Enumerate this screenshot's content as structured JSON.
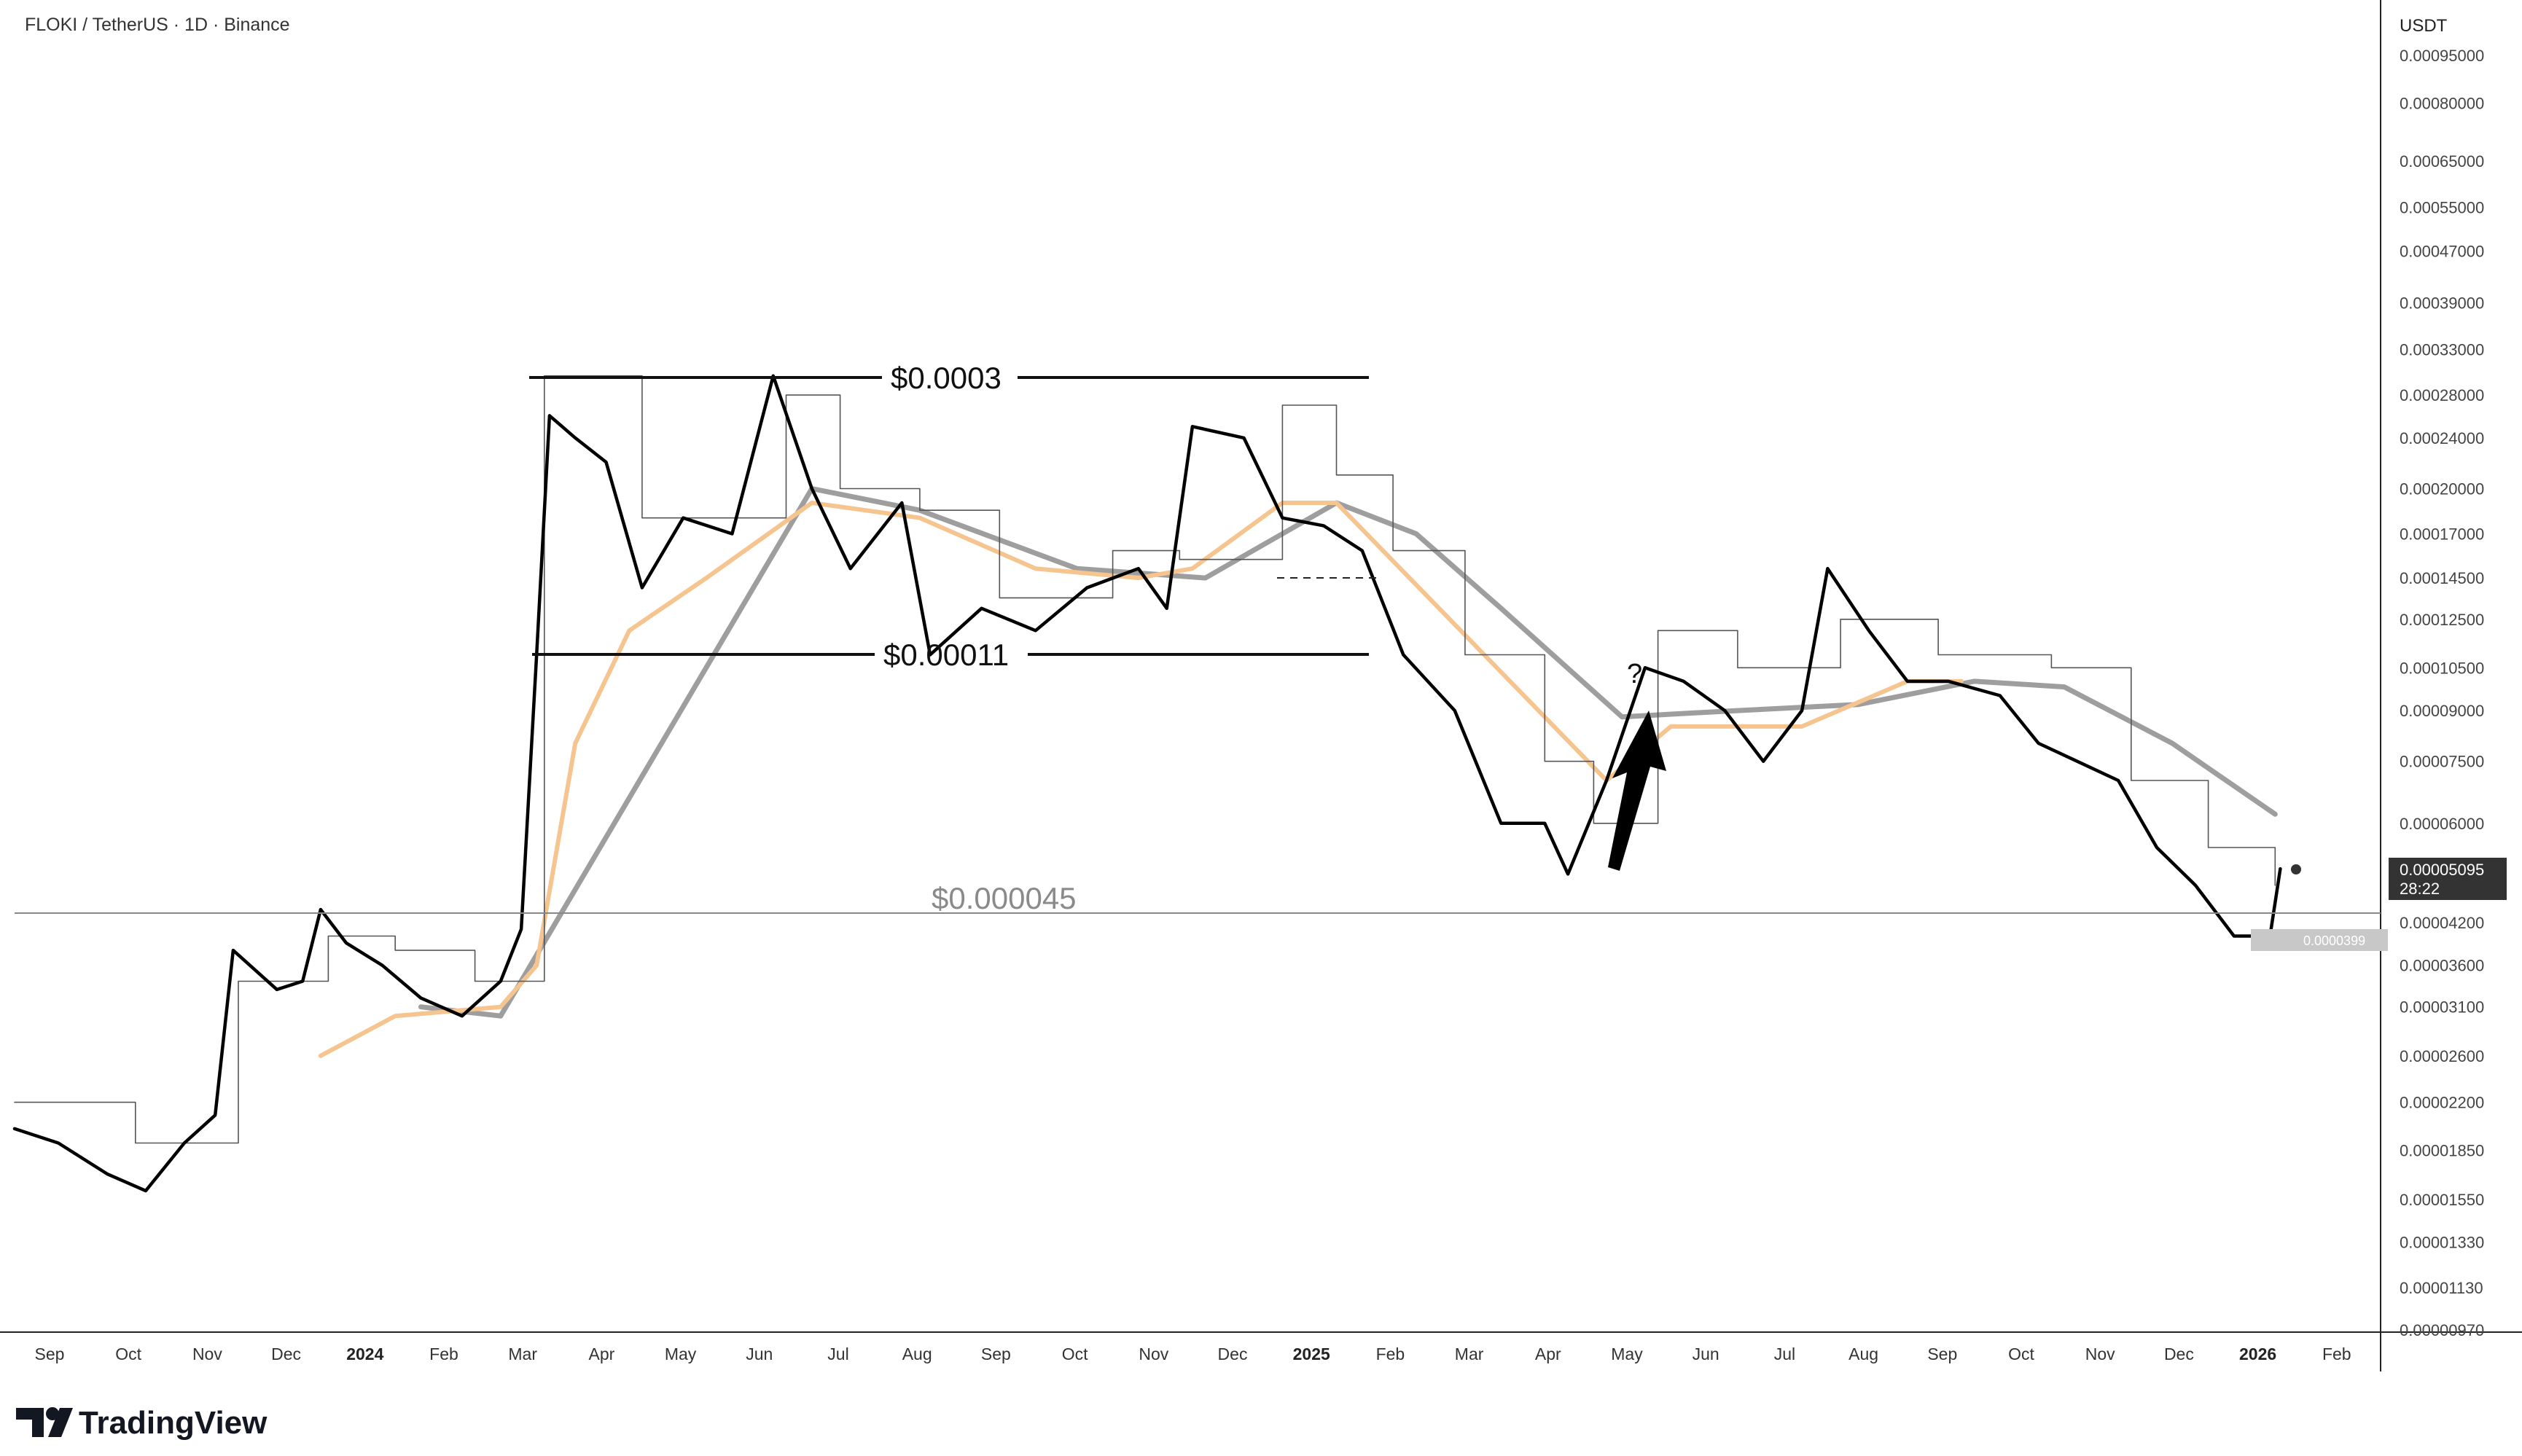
{
  "header": {
    "symbol_title": "FLOKI / TetherUS · 1D · Binance"
  },
  "brand": {
    "logo_text": "TradingView"
  },
  "price_axis": {
    "unit": "USDT",
    "ticks": [
      "0.00095000",
      "0.00080000",
      "0.00065000",
      "0.00055000",
      "0.00047000",
      "0.00039000",
      "0.00033000",
      "0.00028000",
      "0.00024000",
      "0.00020000",
      "0.00017000",
      "0.00014500",
      "0.00012500",
      "0.00010500",
      "0.00009000",
      "0.00007500",
      "0.00006000",
      "0.00004200",
      "0.00003600",
      "0.00003100",
      "0.00002600",
      "0.00002200",
      "0.00001850",
      "0.00001550",
      "0.00001330",
      "0.00001130",
      "0.00000970"
    ]
  },
  "time_axis": {
    "labels": [
      {
        "text": "Sep",
        "bold": false
      },
      {
        "text": "Oct",
        "bold": false
      },
      {
        "text": "Nov",
        "bold": false
      },
      {
        "text": "Dec",
        "bold": false
      },
      {
        "text": "2024",
        "bold": true
      },
      {
        "text": "Feb",
        "bold": false
      },
      {
        "text": "Mar",
        "bold": false
      },
      {
        "text": "Apr",
        "bold": false
      },
      {
        "text": "May",
        "bold": false
      },
      {
        "text": "Jun",
        "bold": false
      },
      {
        "text": "Jul",
        "bold": false
      },
      {
        "text": "Aug",
        "bold": false
      },
      {
        "text": "Sep",
        "bold": false
      },
      {
        "text": "Oct",
        "bold": false
      },
      {
        "text": "Nov",
        "bold": false
      },
      {
        "text": "Dec",
        "bold": false
      },
      {
        "text": "2025",
        "bold": true
      },
      {
        "text": "Feb",
        "bold": false
      },
      {
        "text": "Mar",
        "bold": false
      },
      {
        "text": "Apr",
        "bold": false
      },
      {
        "text": "May",
        "bold": false
      },
      {
        "text": "Jun",
        "bold": false
      },
      {
        "text": "Jul",
        "bold": false
      },
      {
        "text": "Aug",
        "bold": false
      },
      {
        "text": "Sep",
        "bold": false
      },
      {
        "text": "Oct",
        "bold": false
      },
      {
        "text": "Nov",
        "bold": false
      },
      {
        "text": "Dec",
        "bold": false
      },
      {
        "text": "2026",
        "bold": true
      },
      {
        "text": "Feb",
        "bold": false
      }
    ]
  },
  "annotations": {
    "level_top": "$0.0003",
    "level_mid": "$0.00011",
    "level_low": "$0.000045",
    "question": "?"
  },
  "current_price": {
    "value": "0.00005095",
    "countdown": "28:22"
  },
  "low_badge": {
    "text": "0.0000399"
  },
  "colors": {
    "price_line": "#000000",
    "stop_line": "#555555",
    "ma_fast": "#f5c48f",
    "ma_slow": "#9e9e9e",
    "level_line": "#888888",
    "badge_bg": "#333333",
    "low_badge_bg": "#c8c8c8"
  },
  "chart_data": {
    "type": "line",
    "y_scale": "log",
    "ylim": [
      9.7e-06,
      0.00095
    ],
    "x_range": [
      "2023-08-15",
      "2026-02-20"
    ],
    "series": [
      {
        "values": [
          [
            "2023-08-15",
            2e-05
          ],
          [
            "2023-09-01",
            1.9e-05
          ],
          [
            "2023-09-20",
            1.7e-05
          ],
          [
            "2023-10-05",
            1.6e-05
          ],
          [
            "2023-10-20",
            1.9e-05
          ],
          [
            "2023-11-01",
            2.1e-05
          ],
          [
            "2023-11-08",
            3.8e-05
          ],
          [
            "2023-11-25",
            3.3e-05
          ],
          [
            "2023-12-05",
            3.4e-05
          ],
          [
            "2023-12-12",
            4.4e-05
          ],
          [
            "2023-12-22",
            3.9e-05
          ],
          [
            "2024-01-05",
            3.6e-05
          ],
          [
            "2024-01-20",
            3.2e-05
          ],
          [
            "2024-02-05",
            3e-05
          ],
          [
            "2024-02-20",
            3.4e-05
          ],
          [
            "2024-02-28",
            4.1e-05
          ],
          [
            "2024-03-05",
            0.00011
          ],
          [
            "2024-03-10",
            0.00026
          ],
          [
            "2024-03-20",
            0.00024
          ],
          [
            "2024-04-01",
            0.00022
          ],
          [
            "2024-04-15",
            0.00014
          ],
          [
            "2024-05-01",
            0.00018
          ],
          [
            "2024-05-20",
            0.00017
          ],
          [
            "2024-06-05",
            0.0003
          ],
          [
            "2024-06-20",
            0.0002
          ],
          [
            "2024-07-05",
            0.00015
          ],
          [
            "2024-07-25",
            0.00019
          ],
          [
            "2024-08-05",
            0.00011
          ],
          [
            "2024-08-25",
            0.00013
          ],
          [
            "2024-09-15",
            0.00012
          ],
          [
            "2024-10-05",
            0.00014
          ],
          [
            "2024-10-25",
            0.00015
          ],
          [
            "2024-11-05",
            0.00013
          ],
          [
            "2024-11-15",
            0.00025
          ],
          [
            "2024-12-05",
            0.00024
          ],
          [
            "2024-12-20",
            0.00018
          ],
          [
            "2025-01-05",
            0.000175
          ],
          [
            "2025-01-20",
            0.00016
          ],
          [
            "2025-02-05",
            0.00011
          ],
          [
            "2025-02-25",
            9e-05
          ],
          [
            "2025-03-15",
            6e-05
          ],
          [
            "2025-04-01",
            6e-05
          ],
          [
            "2025-04-10",
            5e-05
          ],
          [
            "2025-04-25",
            7e-05
          ],
          [
            "2025-05-10",
            0.000105
          ],
          [
            "2025-05-25",
            0.0001
          ],
          [
            "2025-06-10",
            9e-05
          ],
          [
            "2025-06-25",
            7.5e-05
          ],
          [
            "2025-07-10",
            9e-05
          ],
          [
            "2025-07-20",
            0.00015
          ],
          [
            "2025-08-05",
            0.00012
          ],
          [
            "2025-08-20",
            0.0001
          ],
          [
            "2025-09-05",
            0.0001
          ],
          [
            "2025-09-25",
            9.5e-05
          ],
          [
            "2025-10-10",
            8e-05
          ],
          [
            "2025-10-25",
            7.5e-05
          ],
          [
            "2025-11-10",
            7e-05
          ],
          [
            "2025-11-25",
            5.5e-05
          ],
          [
            "2025-12-10",
            4.8e-05
          ],
          [
            "2025-12-25",
            4e-05
          ],
          [
            "2026-01-08",
            4e-05
          ],
          [
            "2026-01-12",
            5.095e-05
          ]
        ]
      },
      {
        "values": [
          [
            "2023-08-15",
            2.2e-05
          ],
          [
            "2023-10-01",
            1.9e-05
          ],
          [
            "2023-11-05",
            1.9e-05
          ],
          [
            "2023-11-10",
            3.4e-05
          ],
          [
            "2023-12-15",
            4e-05
          ],
          [
            "2024-01-10",
            3.8e-05
          ],
          [
            "2024-02-10",
            3.4e-05
          ],
          [
            "2024-03-08",
            0.0003
          ],
          [
            "2024-04-15",
            0.00018
          ],
          [
            "2024-05-20",
            0.00018
          ],
          [
            "2024-06-10",
            0.00028
          ],
          [
            "2024-07-01",
            0.0002
          ],
          [
            "2024-08-01",
            0.000185
          ],
          [
            "2024-09-01",
            0.000135
          ],
          [
            "2024-10-15",
            0.00016
          ],
          [
            "2024-11-10",
            0.000155
          ],
          [
            "2024-12-20",
            0.00027
          ],
          [
            "2025-01-10",
            0.00021
          ],
          [
            "2025-02-01",
            0.00016
          ],
          [
            "2025-03-01",
            0.00011
          ],
          [
            "2025-04-01",
            7.5e-05
          ],
          [
            "2025-04-20",
            6e-05
          ],
          [
            "2025-05-15",
            0.00012
          ],
          [
            "2025-06-15",
            0.000105
          ],
          [
            "2025-07-25",
            0.000125
          ],
          [
            "2025-09-01",
            0.00011
          ],
          [
            "2025-10-15",
            0.000105
          ],
          [
            "2025-11-15",
            7e-05
          ],
          [
            "2025-12-15",
            5.5e-05
          ],
          [
            "2026-01-10",
            4.8e-05
          ]
        ]
      },
      {
        "values": [
          [
            "2023-12-12",
            2.6e-05
          ],
          [
            "2024-01-10",
            3e-05
          ],
          [
            "2024-02-20",
            3.1e-05
          ],
          [
            "2024-03-05",
            3.6e-05
          ],
          [
            "2024-03-20",
            8e-05
          ],
          [
            "2024-04-10",
            0.00012
          ],
          [
            "2024-05-10",
            0.000145
          ],
          [
            "2024-06-20",
            0.00019
          ],
          [
            "2024-08-01",
            0.00018
          ],
          [
            "2024-09-15",
            0.00015
          ],
          [
            "2024-10-25",
            0.000145
          ],
          [
            "2024-11-15",
            0.00015
          ],
          [
            "2024-12-20",
            0.00019
          ],
          [
            "2025-01-10",
            0.00019
          ],
          [
            "2025-04-25",
            7e-05
          ],
          [
            "2025-05-20",
            8.5e-05
          ],
          [
            "2025-07-10",
            8.5e-05
          ],
          [
            "2025-08-20",
            0.0001
          ],
          [
            "2025-09-10",
            0.0001
          ]
        ]
      },
      {
        "values": [
          [
            "2024-01-20",
            3.1e-05
          ],
          [
            "2024-02-20",
            3e-05
          ],
          [
            "2024-06-20",
            0.0002
          ],
          [
            "2024-08-01",
            0.000185
          ],
          [
            "2024-10-01",
            0.00015
          ],
          [
            "2024-11-20",
            0.000145
          ],
          [
            "2025-01-10",
            0.00019
          ],
          [
            "2025-02-10",
            0.00017
          ],
          [
            "2025-03-15",
            0.00013
          ],
          [
            "2025-05-01",
            8.8e-05
          ],
          [
            "2025-06-15",
            9e-05
          ],
          [
            "2025-08-01",
            9.2e-05
          ],
          [
            "2025-09-15",
            0.0001
          ],
          [
            "2025-10-20",
            9.8e-05
          ],
          [
            "2025-12-01",
            8e-05
          ],
          [
            "2026-01-10",
            6.2e-05
          ]
        ]
      }
    ],
    "horizontal_levels": [
      0.0003,
      0.00011,
      4.5e-05
    ]
  }
}
